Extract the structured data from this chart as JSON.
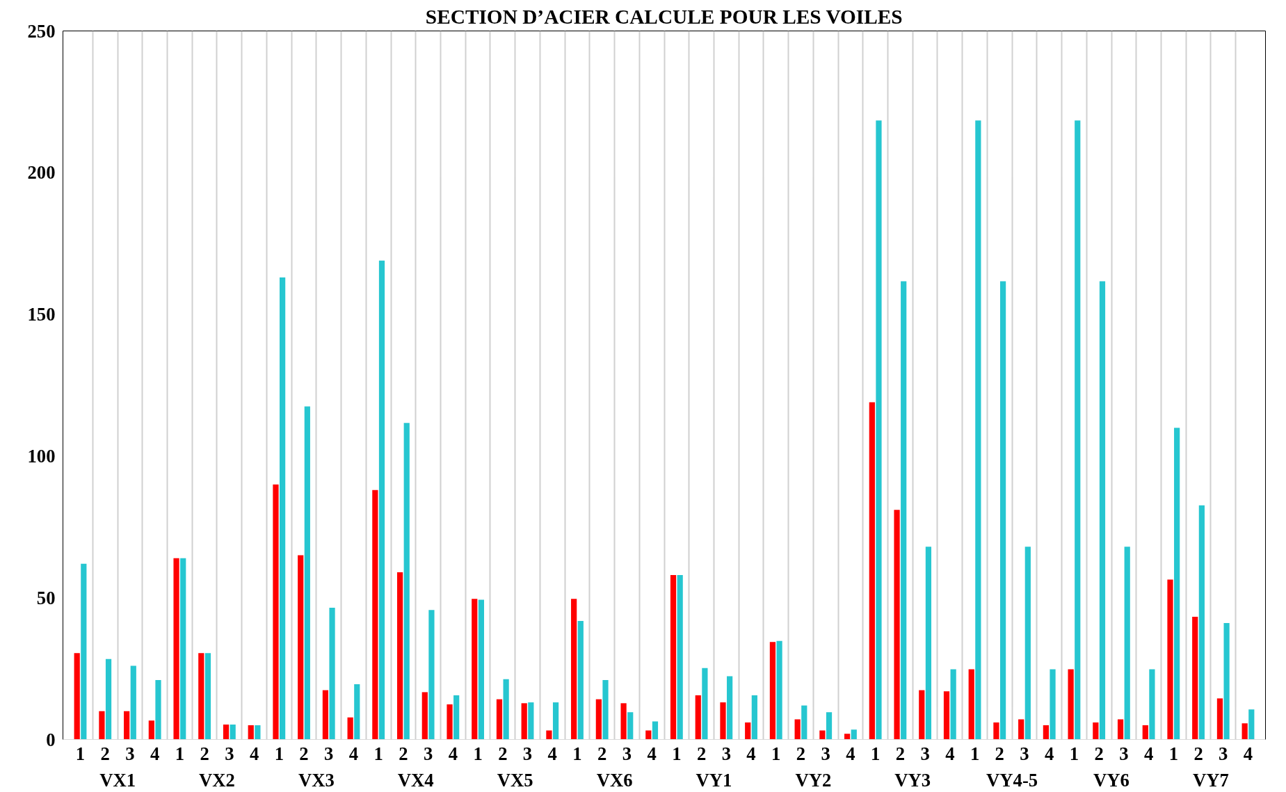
{
  "chart_data": {
    "type": "bar",
    "title": "SECTION D’ACIER CALCULE POUR LES VOILES",
    "categories": [
      "1",
      "2",
      "3",
      "4",
      "1",
      "2",
      "3",
      "4",
      "1",
      "2",
      "3",
      "4",
      "1",
      "2",
      "3",
      "4",
      "1",
      "2",
      "3",
      "4",
      "1",
      "2",
      "3",
      "4",
      "1",
      "2",
      "3",
      "4",
      "1",
      "2",
      "3",
      "4",
      "1",
      "2",
      "3",
      "4",
      "1",
      "2",
      "3",
      "4",
      "1",
      "2",
      "3",
      "4",
      "1",
      "2",
      "3",
      "4"
    ],
    "annotations": [
      "VX1",
      "VX2",
      "VX3",
      "VX4",
      "VX5",
      "VX6",
      "VY1",
      "VY2",
      "VY3",
      "VY4-5",
      "VY6",
      "VY7"
    ],
    "series": [
      {
        "color": "#ff0000",
        "values": [
          30.5,
          10,
          10,
          6.7,
          64,
          30.5,
          5.3,
          5,
          90,
          65,
          17.4,
          7.8,
          88,
          59,
          16.7,
          12.4,
          49.6,
          14.2,
          12.8,
          3.2,
          49.6,
          14.2,
          12.8,
          3.2,
          58,
          15.6,
          13.1,
          6,
          34.4,
          7.1,
          3.2,
          2,
          119,
          81,
          17.4,
          17,
          24.8,
          6,
          7.1,
          5,
          24.8,
          6,
          7.1,
          5,
          56.4,
          43.3,
          14.5,
          5.7
        ]
      },
      {
        "color": "#26c6d0",
        "values": [
          62,
          28.4,
          26,
          21,
          64,
          30.5,
          5.3,
          5,
          163,
          117.5,
          46.5,
          19.5,
          169,
          111.7,
          45.7,
          15.6,
          49.3,
          21.3,
          13.1,
          13.1,
          41.8,
          21,
          9.6,
          6.4,
          58,
          25.2,
          22.3,
          15.6,
          34.8,
          12,
          9.6,
          3.5,
          218.4,
          161.7,
          68,
          24.8,
          218.4,
          161.7,
          68,
          24.8,
          218.4,
          161.7,
          68,
          24.8,
          110,
          82.6,
          41.1,
          10.6
        ]
      }
    ],
    "ylim": [
      0,
      250
    ],
    "yticks": [
      0,
      50,
      100,
      150,
      200,
      250
    ],
    "grid": "x"
  }
}
